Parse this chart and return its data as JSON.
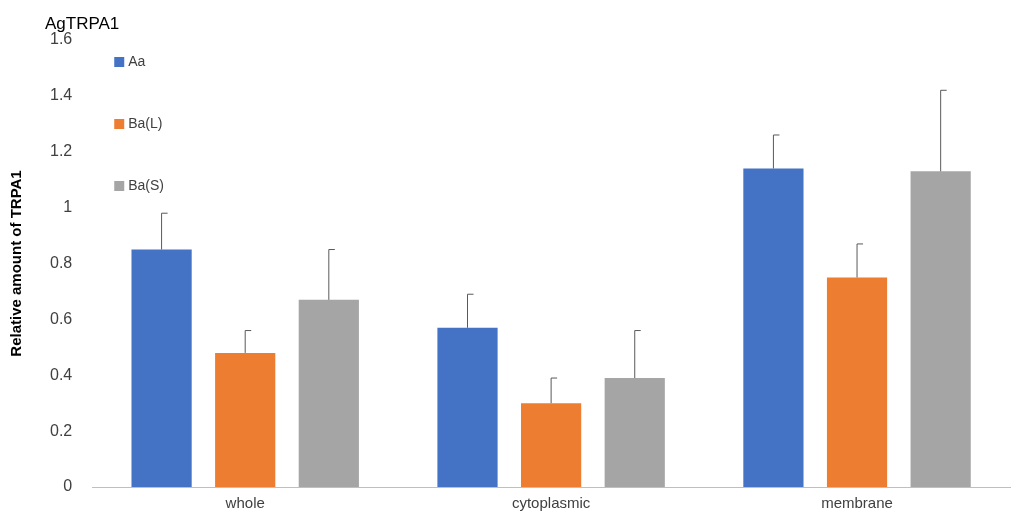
{
  "chart_data": {
    "type": "bar",
    "title": "AgTRPA1",
    "ylabel": "Relative amount of TRPA1",
    "categories": [
      "whole",
      "cytoplasmic",
      "membrane"
    ],
    "series": [
      {
        "name": "Aa",
        "color": "#4472c4",
        "values": [
          0.85,
          0.57,
          1.14
        ],
        "errors": [
          [
            0.85,
            0.98
          ],
          [
            0.57,
            0.69
          ],
          [
            1.14,
            1.26
          ]
        ]
      },
      {
        "name": "Ba(L)",
        "color": "#ed7d31",
        "values": [
          0.48,
          0.3,
          0.75
        ],
        "errors": [
          [
            0.48,
            0.56
          ],
          [
            0.3,
            0.39
          ],
          [
            0.75,
            0.87
          ]
        ]
      },
      {
        "name": "Ba(S)",
        "color": "#a5a5a5",
        "values": [
          0.67,
          0.39,
          1.13
        ],
        "errors": [
          [
            0.67,
            0.85
          ],
          [
            0.39,
            0.56
          ],
          [
            1.13,
            1.42
          ]
        ]
      }
    ],
    "ylim": [
      0,
      1.6
    ],
    "yticks": [
      0,
      {
        "value": 0.2,
        "label": "0.2"
      },
      {
        "value": 0.4,
        "label": "0.4"
      },
      {
        "value": 0.6,
        "label": "0.6"
      },
      {
        "value": 0.8,
        "label": "0.8"
      },
      1,
      {
        "value": 1.2,
        "label": "1.2"
      },
      {
        "value": 1.4,
        "label": "1.4"
      },
      {
        "value": 1.6,
        "label": "1.6"
      }
    ],
    "grid": false,
    "legend": "top left"
  }
}
